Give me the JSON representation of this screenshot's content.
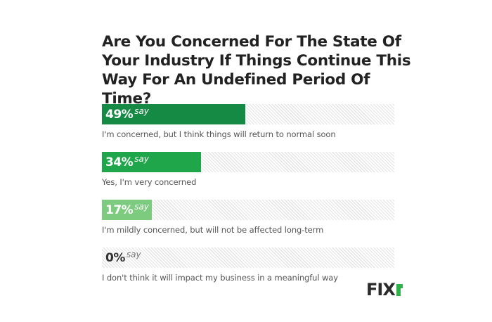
{
  "title": "Are You Concerned For The State Of Your Industry If Things Continue This Way For An Undefined Period Of Time?",
  "say_label": "say",
  "logo": {
    "text": "FIX",
    "accent_letter": "r",
    "accent_color": "#2fb14a"
  },
  "rows": [
    {
      "pct_label": "49%",
      "value": 49,
      "color": "#148a45",
      "caption": "I'm concerned, but I think things will return to normal soon"
    },
    {
      "pct_label": "34%",
      "value": 34,
      "color": "#1fa64a",
      "caption": "Yes, I'm very concerned"
    },
    {
      "pct_label": "17%",
      "value": 17,
      "color": "#7ccb7e",
      "caption": "I'm mildly concerned, but will not be affected long-term"
    },
    {
      "pct_label": "0%",
      "value": 0,
      "color": "#bfe3bf",
      "caption": "I don't think it will impact my business in a meaningful way"
    }
  ],
  "chart_data": {
    "type": "bar",
    "orientation": "horizontal",
    "title": "Are You Concerned For The State Of Your Industry If Things Continue This Way For An Undefined Period Of Time?",
    "categories": [
      "I'm concerned, but I think things will return to normal soon",
      "Yes, I'm very concerned",
      "I'm mildly concerned, but will not be affected long-term",
      "I don't think it will impact my business in a meaningful way"
    ],
    "values": [
      49,
      34,
      17,
      0
    ],
    "unit": "%",
    "xlim": [
      0,
      100
    ],
    "data_labels": [
      "49% say",
      "34% say",
      "17% say",
      "0% say"
    ],
    "xlabel": "",
    "ylabel": "",
    "grid": false,
    "legend": "none"
  }
}
